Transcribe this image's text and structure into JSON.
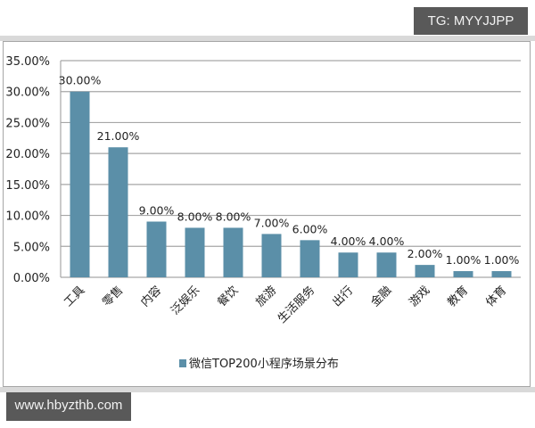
{
  "watermarks": {
    "tg": "TG: MYYJJPP",
    "url": "www.hbyzthb.com"
  },
  "colors": {
    "bar": "#5b8fa8",
    "gridline": "#a6a6a6",
    "badge_bg": "#595959"
  },
  "chart_data": {
    "type": "bar",
    "title": "",
    "xlabel": "",
    "ylabel": "",
    "ylim": [
      0,
      35
    ],
    "yticks": [
      "0.00%",
      "5.00%",
      "10.00%",
      "15.00%",
      "20.00%",
      "25.00%",
      "30.00%",
      "35.00%"
    ],
    "grid": true,
    "legend_position": "bottom",
    "categories": [
      "工具",
      "零售",
      "内容",
      "泛娱乐",
      "餐饮",
      "旅游",
      "生活服务",
      "出行",
      "金融",
      "游戏",
      "教育",
      "体育"
    ],
    "series": [
      {
        "name": "微信TOP200小程序场景分布",
        "values": [
          30,
          21,
          9,
          8,
          8,
          7,
          6,
          4,
          4,
          2,
          1,
          1
        ],
        "labels": [
          "30.00%",
          "21.00%",
          "9.00%",
          "8.00%",
          "8.00%",
          "7.00%",
          "6.00%",
          "4.00%",
          "4.00%",
          "2.00%",
          "1.00%",
          "1.00%"
        ]
      }
    ]
  }
}
